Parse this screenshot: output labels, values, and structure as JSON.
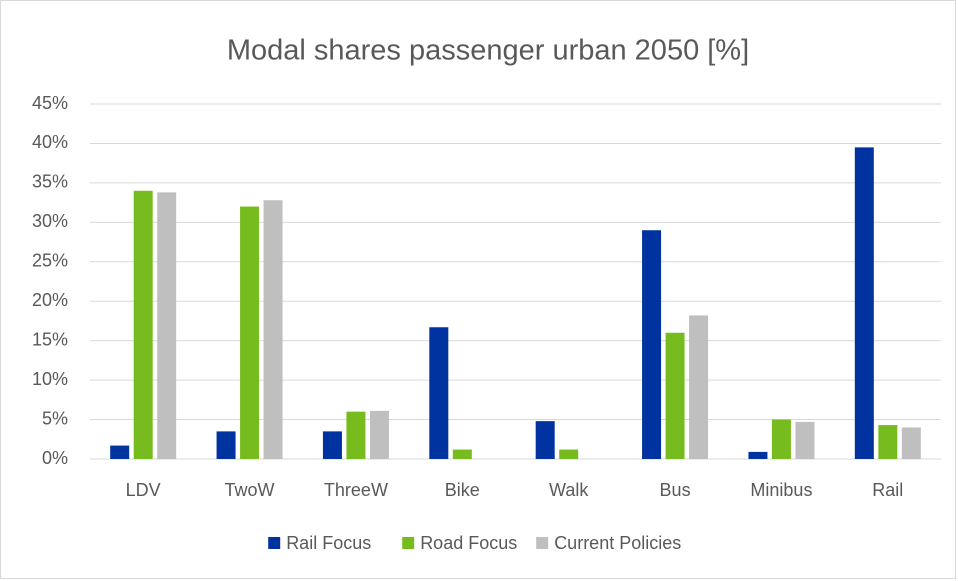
{
  "chart_data": {
    "type": "bar",
    "title": "Modal shares passenger urban 2050 [%]",
    "categories": [
      "LDV",
      "TwoW",
      "ThreeW",
      "Bike",
      "Walk",
      "Bus",
      "Minibus",
      "Rail"
    ],
    "series": [
      {
        "name": "Rail Focus",
        "color": "#0033a0",
        "values": [
          1.7,
          3.5,
          3.5,
          16.7,
          4.8,
          29.0,
          0.9,
          39.5
        ]
      },
      {
        "name": "Road Focus",
        "color": "#77bc1f",
        "values": [
          34.0,
          32.0,
          6.0,
          1.2,
          1.2,
          16.0,
          5.0,
          4.3
        ]
      },
      {
        "name": "Current Policies",
        "color": "#bfbfbf",
        "values": [
          33.8,
          32.8,
          6.1,
          0,
          0,
          18.2,
          4.7,
          4.0
        ]
      }
    ],
    "ylim": [
      0,
      45
    ],
    "yticks": [
      {
        "value": 0,
        "label": "0%"
      },
      {
        "value": 5,
        "label": "5%"
      },
      {
        "value": 10,
        "label": "10%"
      },
      {
        "value": 15,
        "label": "15%"
      },
      {
        "value": 20,
        "label": "20%"
      },
      {
        "value": 25,
        "label": "25%"
      },
      {
        "value": 30,
        "label": "30%"
      },
      {
        "value": 35,
        "label": "35%"
      },
      {
        "value": 40,
        "label": "40%"
      },
      {
        "value": 45,
        "label": "45%"
      }
    ],
    "grid": true,
    "legend": "bottom"
  }
}
